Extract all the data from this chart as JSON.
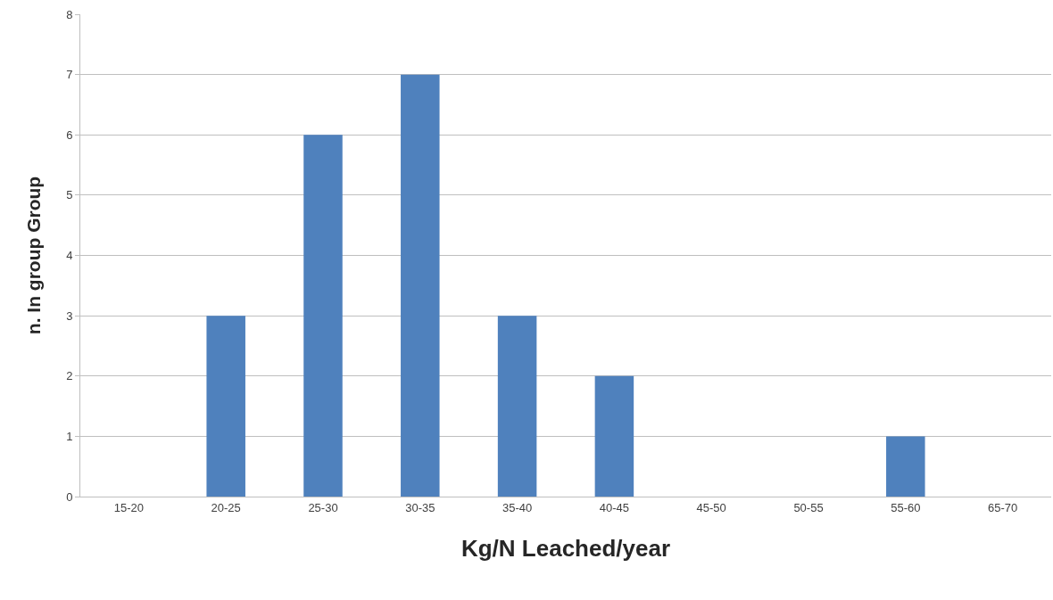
{
  "chart_data": {
    "type": "bar",
    "categories": [
      "15-20",
      "20-25",
      "25-30",
      "30-35",
      "35-40",
      "40-45",
      "45-50",
      "50-55",
      "55-60",
      "65-70"
    ],
    "values": [
      0,
      3,
      6,
      7,
      3,
      2,
      0,
      0,
      1,
      0
    ],
    "color": "#4f81bd",
    "xlabel": "Kg/N Leached/year",
    "ylabel": "n. In group Group",
    "ylim": [
      0,
      8
    ],
    "yticks": [
      0,
      1,
      2,
      3,
      4,
      5,
      6,
      7,
      8
    ],
    "grid": "y",
    "legend": false
  }
}
